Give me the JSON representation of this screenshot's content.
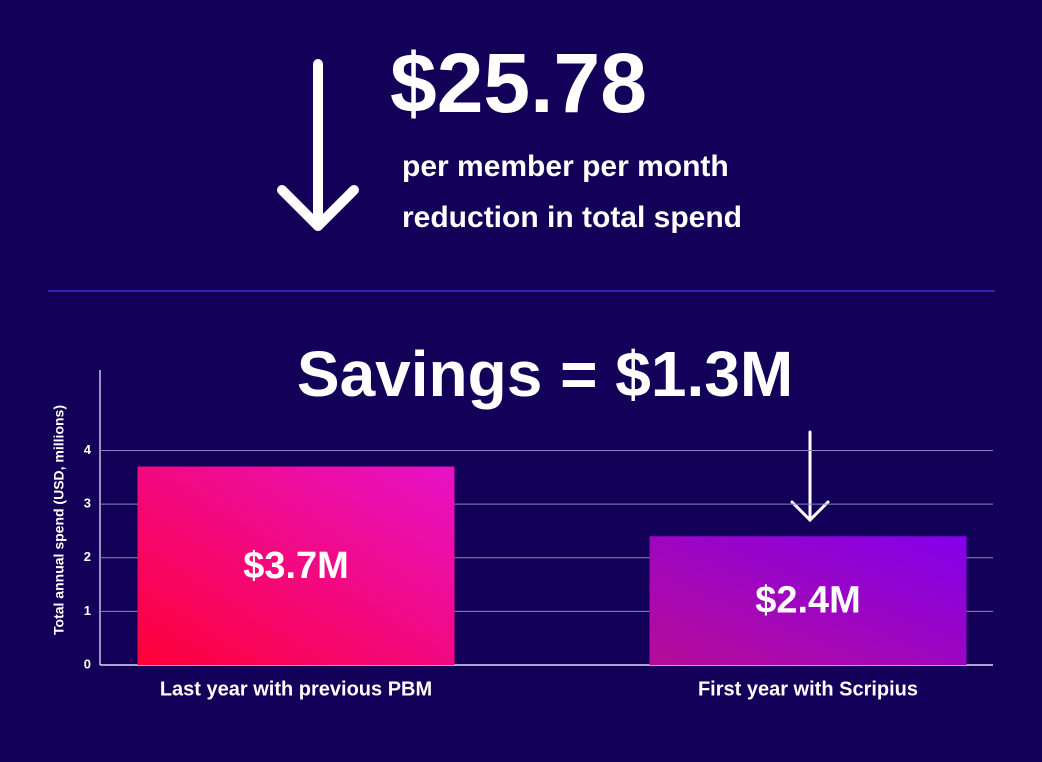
{
  "header": {
    "figure": "$25.78",
    "line1": "per member per month",
    "line2": "reduction in total spend"
  },
  "chart_data": {
    "type": "bar",
    "annotation": "Savings = $1.3M",
    "y_label": "Total annual spend (USD, millions)",
    "categories": [
      "Last year with previous PBM",
      "First year with Scripius"
    ],
    "values": [
      3.7,
      2.4
    ],
    "value_labels": [
      "$3.7M",
      "$2.4M"
    ],
    "colors": [
      [
        "#ff0038",
        "#e612c8"
      ],
      [
        "#b80c98",
        "#8200ea"
      ]
    ],
    "ylim": [
      0,
      5.5
    ],
    "yticks": [
      0,
      1,
      2,
      3,
      4
    ],
    "grid": true
  }
}
